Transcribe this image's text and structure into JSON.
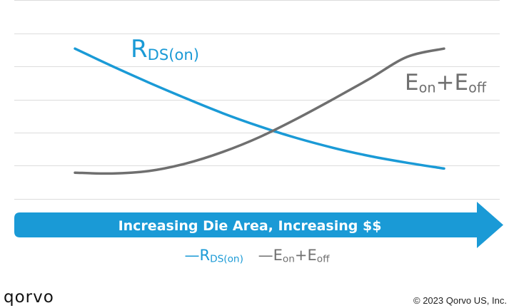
{
  "colors": {
    "rds": "#1a9ad6",
    "eon_eoff": "#6f6f6f",
    "arrow": "#1a9ad6",
    "grid": "#dcdcdc"
  },
  "chart_data": {
    "type": "line",
    "grid": true,
    "ylim": [
      0,
      10
    ],
    "xlim": [
      0,
      10
    ],
    "series": [
      {
        "name": "R",
        "name_sub": "DS(on)",
        "color": "#1a9ad6",
        "x": [
          0,
          1,
          2,
          3,
          4,
          5,
          6,
          7,
          8,
          9,
          10
        ],
        "y": [
          9.0,
          7.95,
          6.95,
          6.0,
          5.1,
          4.3,
          3.6,
          3.0,
          2.5,
          2.1,
          1.75
        ]
      },
      {
        "name": "E",
        "name_sub": "on",
        "name_mid": "+E",
        "name_sub2": "off",
        "color": "#6f6f6f",
        "x": [
          0,
          1,
          2,
          3,
          4,
          5,
          6,
          7,
          8,
          9,
          10
        ],
        "y": [
          1.5,
          1.45,
          1.6,
          2.05,
          2.75,
          3.65,
          4.75,
          5.95,
          7.2,
          8.5,
          9.0
        ]
      }
    ]
  },
  "arrow_label": "Increasing Die Area, Increasing $$",
  "legend": [
    {
      "dash": "—",
      "main": "R",
      "sub": "DS(on)"
    },
    {
      "dash": "—",
      "main": "E",
      "sub": "on",
      "main2": "+E",
      "sub2": "off"
    }
  ],
  "brand": "qorvo",
  "copyright": "© 2023 Qorvo US, Inc."
}
